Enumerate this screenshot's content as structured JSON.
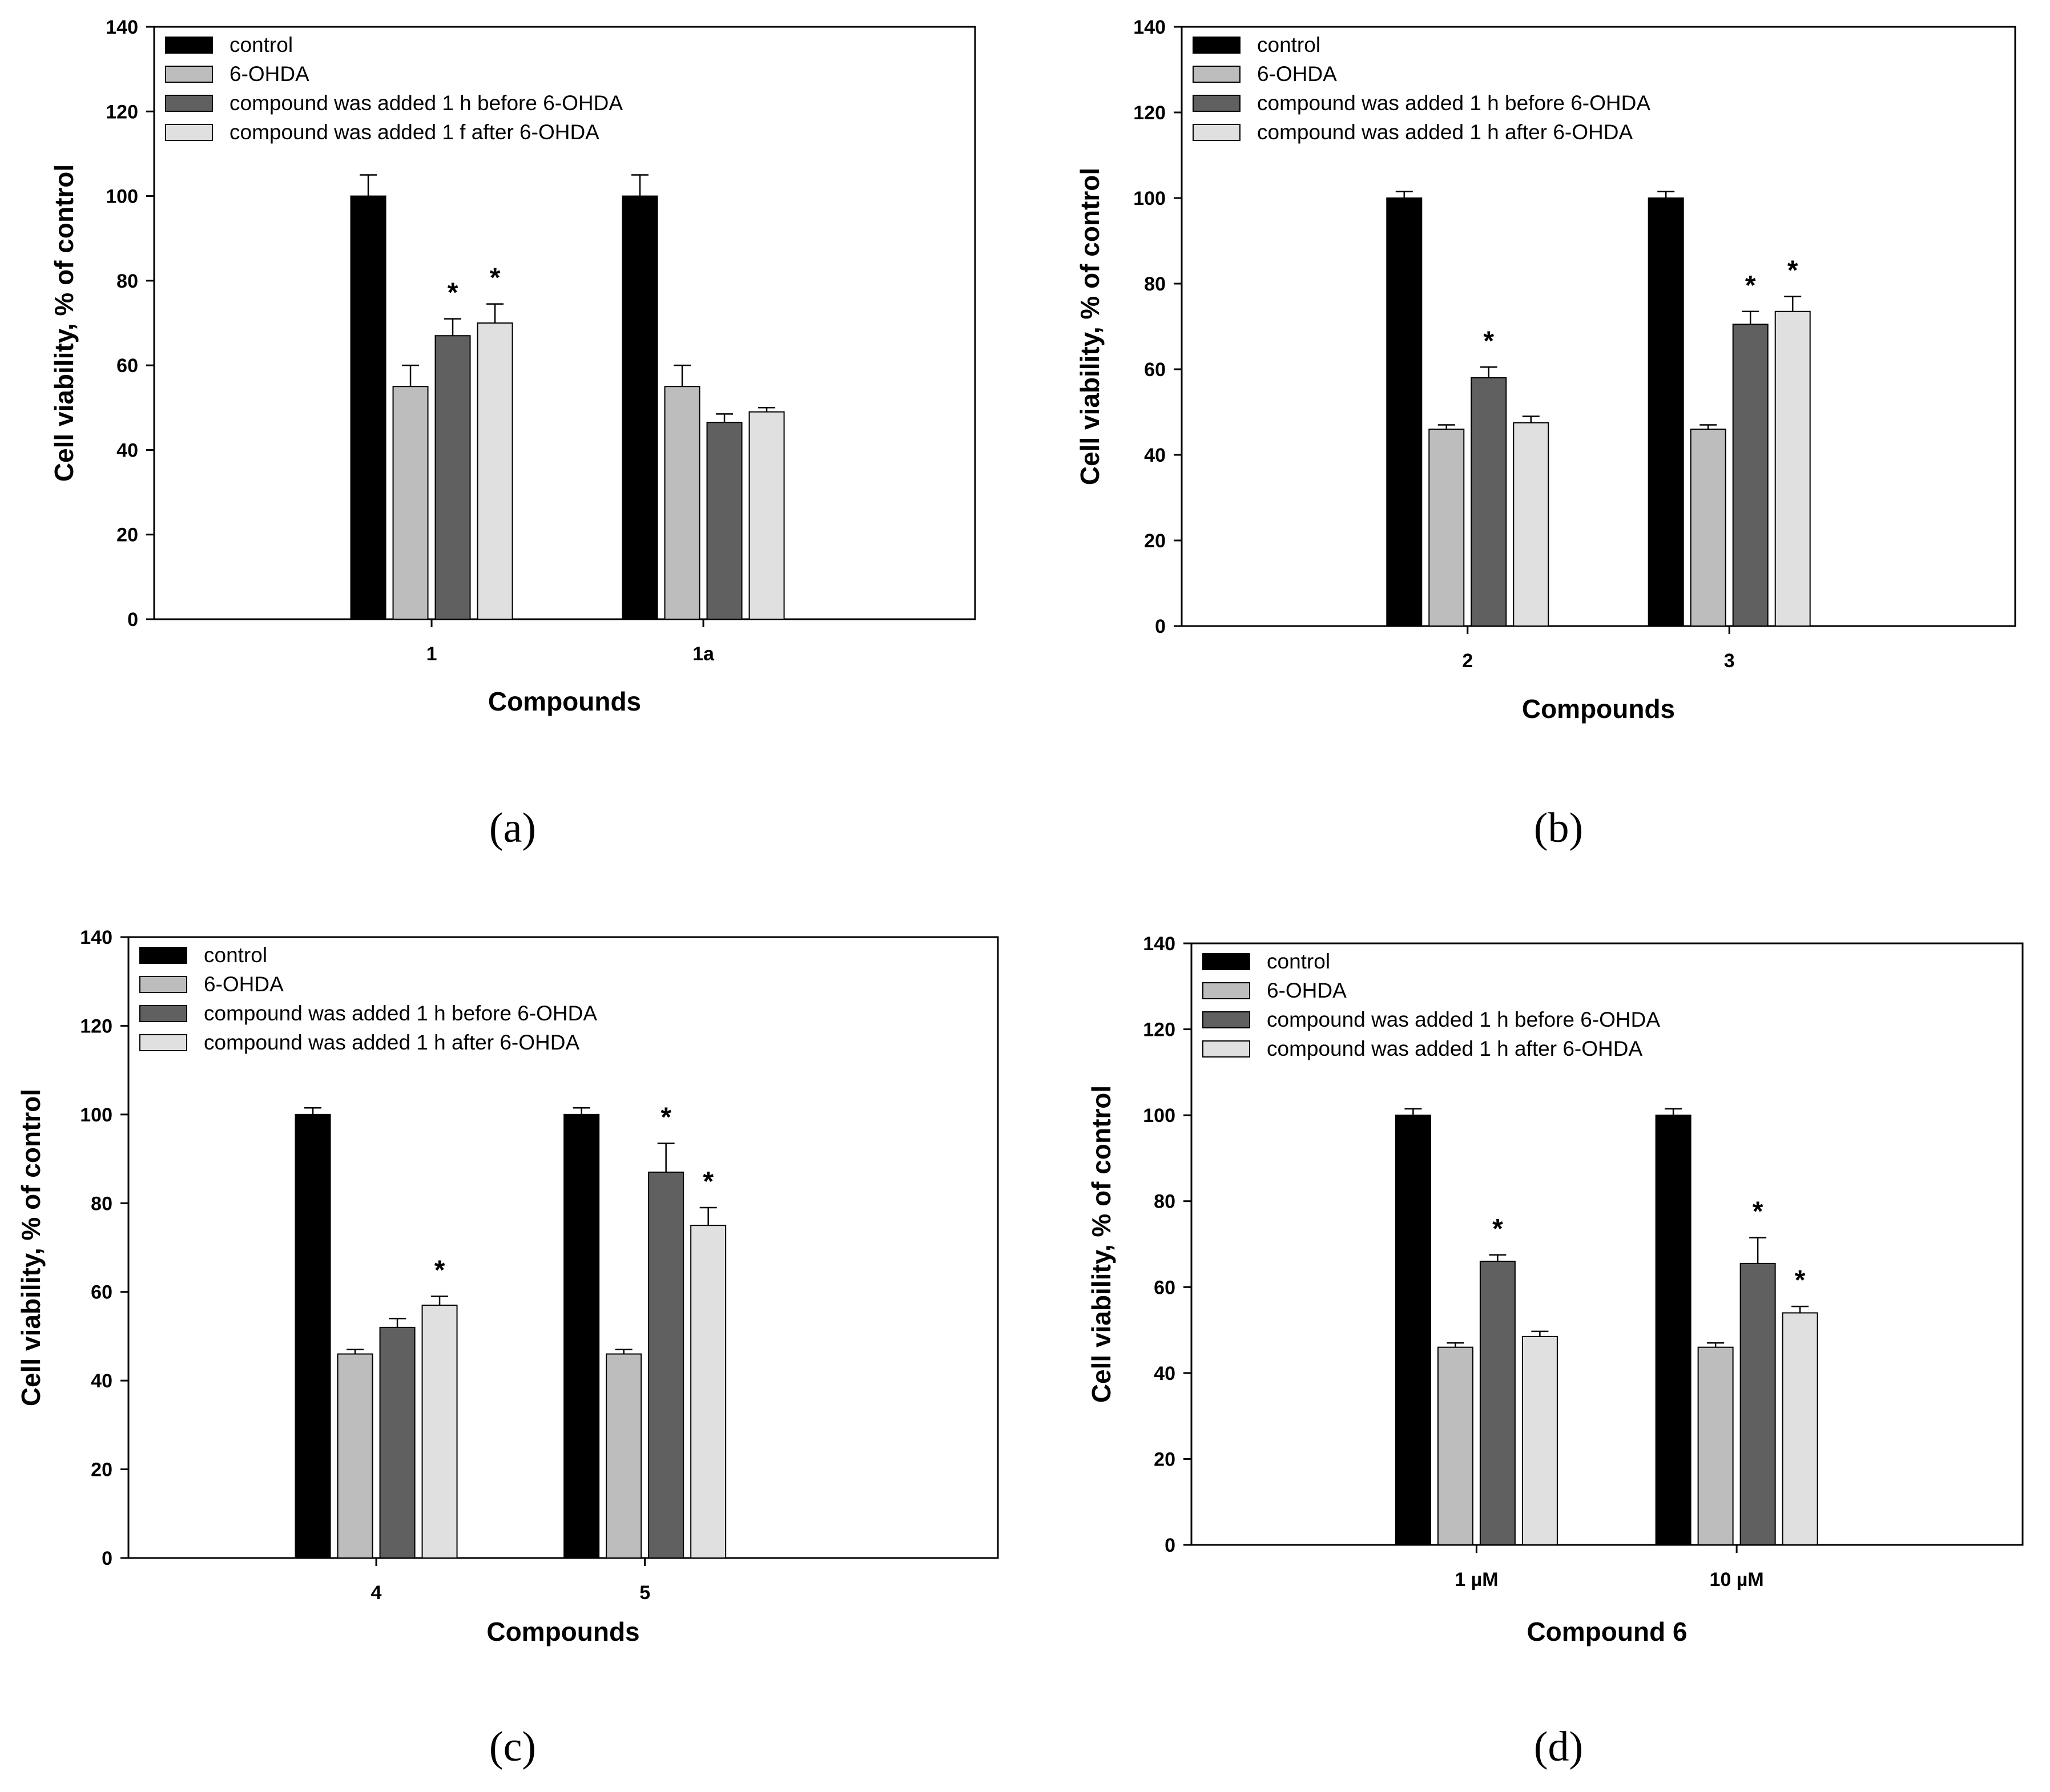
{
  "figure": {
    "panel_labels": [
      "(a)",
      "(b)",
      "(c)",
      "(d)"
    ]
  },
  "chart_data": [
    {
      "type": "bar",
      "panel": "(a)",
      "title": "",
      "xlabel": "Compounds",
      "ylabel": "Cell viability, % of control",
      "ylim": [
        0,
        140
      ],
      "yticks": [
        0,
        20,
        40,
        60,
        80,
        100,
        120,
        140
      ],
      "grid": false,
      "legend_position": "top-left",
      "categories": [
        "1",
        "1a"
      ],
      "series": [
        {
          "name": "control",
          "color": "#000000",
          "values": [
            100,
            100
          ],
          "errors": [
            5,
            5
          ],
          "sig": [
            false,
            false
          ]
        },
        {
          "name": "6-OHDA",
          "color": "#bdbdbd",
          "values": [
            55,
            55
          ],
          "errors": [
            5,
            5
          ],
          "sig": [
            false,
            false
          ]
        },
        {
          "name": "compound was added 1 h before 6-OHDA",
          "color": "#606060",
          "values": [
            67,
            46.5
          ],
          "errors": [
            4,
            2
          ],
          "sig": [
            true,
            false
          ]
        },
        {
          "name": "compound was added 1 f after 6-OHDA",
          "color": "#e0e0e0",
          "values": [
            70,
            49
          ],
          "errors": [
            4.5,
            1
          ],
          "sig": [
            true,
            false
          ]
        }
      ]
    },
    {
      "type": "bar",
      "panel": "(b)",
      "title": "",
      "xlabel": "Compounds",
      "ylabel": "Cell viability, % of control",
      "ylim": [
        0,
        140
      ],
      "yticks": [
        0,
        20,
        40,
        60,
        80,
        100,
        120,
        140
      ],
      "grid": false,
      "legend_position": "top-left",
      "categories": [
        "2",
        "3"
      ],
      "series": [
        {
          "name": "control",
          "color": "#000000",
          "values": [
            100,
            100
          ],
          "errors": [
            1.5,
            1.5
          ],
          "sig": [
            false,
            false
          ]
        },
        {
          "name": "6-OHDA",
          "color": "#bdbdbd",
          "values": [
            46,
            46
          ],
          "errors": [
            1,
            1
          ],
          "sig": [
            false,
            false
          ]
        },
        {
          "name": "compound was added 1 h before 6-OHDA",
          "color": "#606060",
          "values": [
            58,
            70.5
          ],
          "errors": [
            2.5,
            3
          ],
          "sig": [
            true,
            true
          ]
        },
        {
          "name": "compound was added 1 h after 6-OHDA",
          "color": "#e0e0e0",
          "values": [
            47.5,
            73.5
          ],
          "errors": [
            1.5,
            3.5
          ],
          "sig": [
            false,
            true
          ]
        }
      ]
    },
    {
      "type": "bar",
      "panel": "(c)",
      "title": "",
      "xlabel": "Compounds",
      "ylabel": "Cell viability, % of control",
      "ylim": [
        0,
        140
      ],
      "yticks": [
        0,
        20,
        40,
        60,
        80,
        100,
        120,
        140
      ],
      "grid": false,
      "legend_position": "top-left",
      "categories": [
        "4",
        "5"
      ],
      "series": [
        {
          "name": "control",
          "color": "#000000",
          "values": [
            100,
            100
          ],
          "errors": [
            1.5,
            1.5
          ],
          "sig": [
            false,
            false
          ]
        },
        {
          "name": "6-OHDA",
          "color": "#bdbdbd",
          "values": [
            46,
            46
          ],
          "errors": [
            1,
            1
          ],
          "sig": [
            false,
            false
          ]
        },
        {
          "name": "compound was added 1 h before 6-OHDA",
          "color": "#606060",
          "values": [
            52,
            87
          ],
          "errors": [
            2,
            6.5
          ],
          "sig": [
            false,
            true
          ]
        },
        {
          "name": "compound was added 1 h after 6-OHDA",
          "color": "#e0e0e0",
          "values": [
            57,
            75
          ],
          "errors": [
            2,
            4
          ],
          "sig": [
            true,
            true
          ]
        }
      ]
    },
    {
      "type": "bar",
      "panel": "(d)",
      "title": "",
      "xlabel": "Compound 6",
      "ylabel": "Cell viability, % of control",
      "ylim": [
        0,
        140
      ],
      "yticks": [
        0,
        20,
        40,
        60,
        80,
        100,
        120,
        140
      ],
      "grid": false,
      "legend_position": "top-left",
      "categories": [
        "1 µM",
        "10 µM"
      ],
      "series": [
        {
          "name": "control",
          "color": "#000000",
          "values": [
            100,
            100
          ],
          "errors": [
            1.5,
            1.5
          ],
          "sig": [
            false,
            false
          ]
        },
        {
          "name": "6-OHDA",
          "color": "#bdbdbd",
          "values": [
            46,
            46
          ],
          "errors": [
            1,
            1
          ],
          "sig": [
            false,
            false
          ]
        },
        {
          "name": "compound was added 1 h before 6-OHDA",
          "color": "#606060",
          "values": [
            66,
            65.5
          ],
          "errors": [
            1.5,
            6
          ],
          "sig": [
            true,
            true
          ]
        },
        {
          "name": "compound was added 1 h after 6-OHDA",
          "color": "#e0e0e0",
          "values": [
            48.5,
            54
          ],
          "errors": [
            1.2,
            1.5
          ],
          "sig": [
            false,
            true
          ]
        }
      ]
    }
  ]
}
